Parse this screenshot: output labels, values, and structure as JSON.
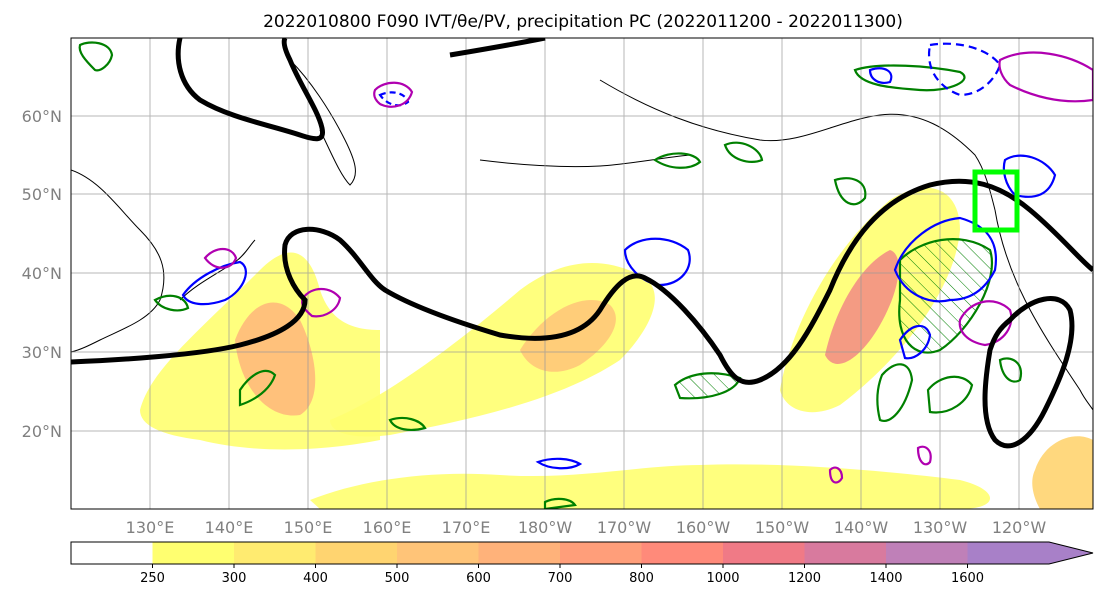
{
  "title": "2022010800 F090 IVT/θe/PV, precipitation PC (2022011200 - 2022011300)",
  "map": {
    "lon_labels": [
      "130°E",
      "140°E",
      "150°E",
      "160°E",
      "170°E",
      "180°W",
      "170°W",
      "160°W",
      "150°W",
      "140°W",
      "130°W",
      "120°W"
    ],
    "lat_labels": [
      "20°N",
      "30°N",
      "40°N",
      "50°N",
      "60°N"
    ],
    "highlight_box_color": "#00ff00",
    "contour_colors": {
      "theta_e": "#000000",
      "pv_pos": "#0000ff",
      "pv_neg": "#b000b0",
      "precip_pc": "#008000"
    }
  },
  "colorbar": {
    "levels": [
      "250",
      "300",
      "400",
      "500",
      "600",
      "700",
      "800",
      "1000",
      "1200",
      "1400",
      "1600"
    ],
    "colors": [
      "#ffffff",
      "#ffff70",
      "#ffeb70",
      "#ffd470",
      "#ffc478",
      "#ffb27a",
      "#ff9e7a",
      "#ff8a7a",
      "#f07a86",
      "#d87a9e",
      "#bf80b8",
      "#a880c8"
    ]
  }
}
